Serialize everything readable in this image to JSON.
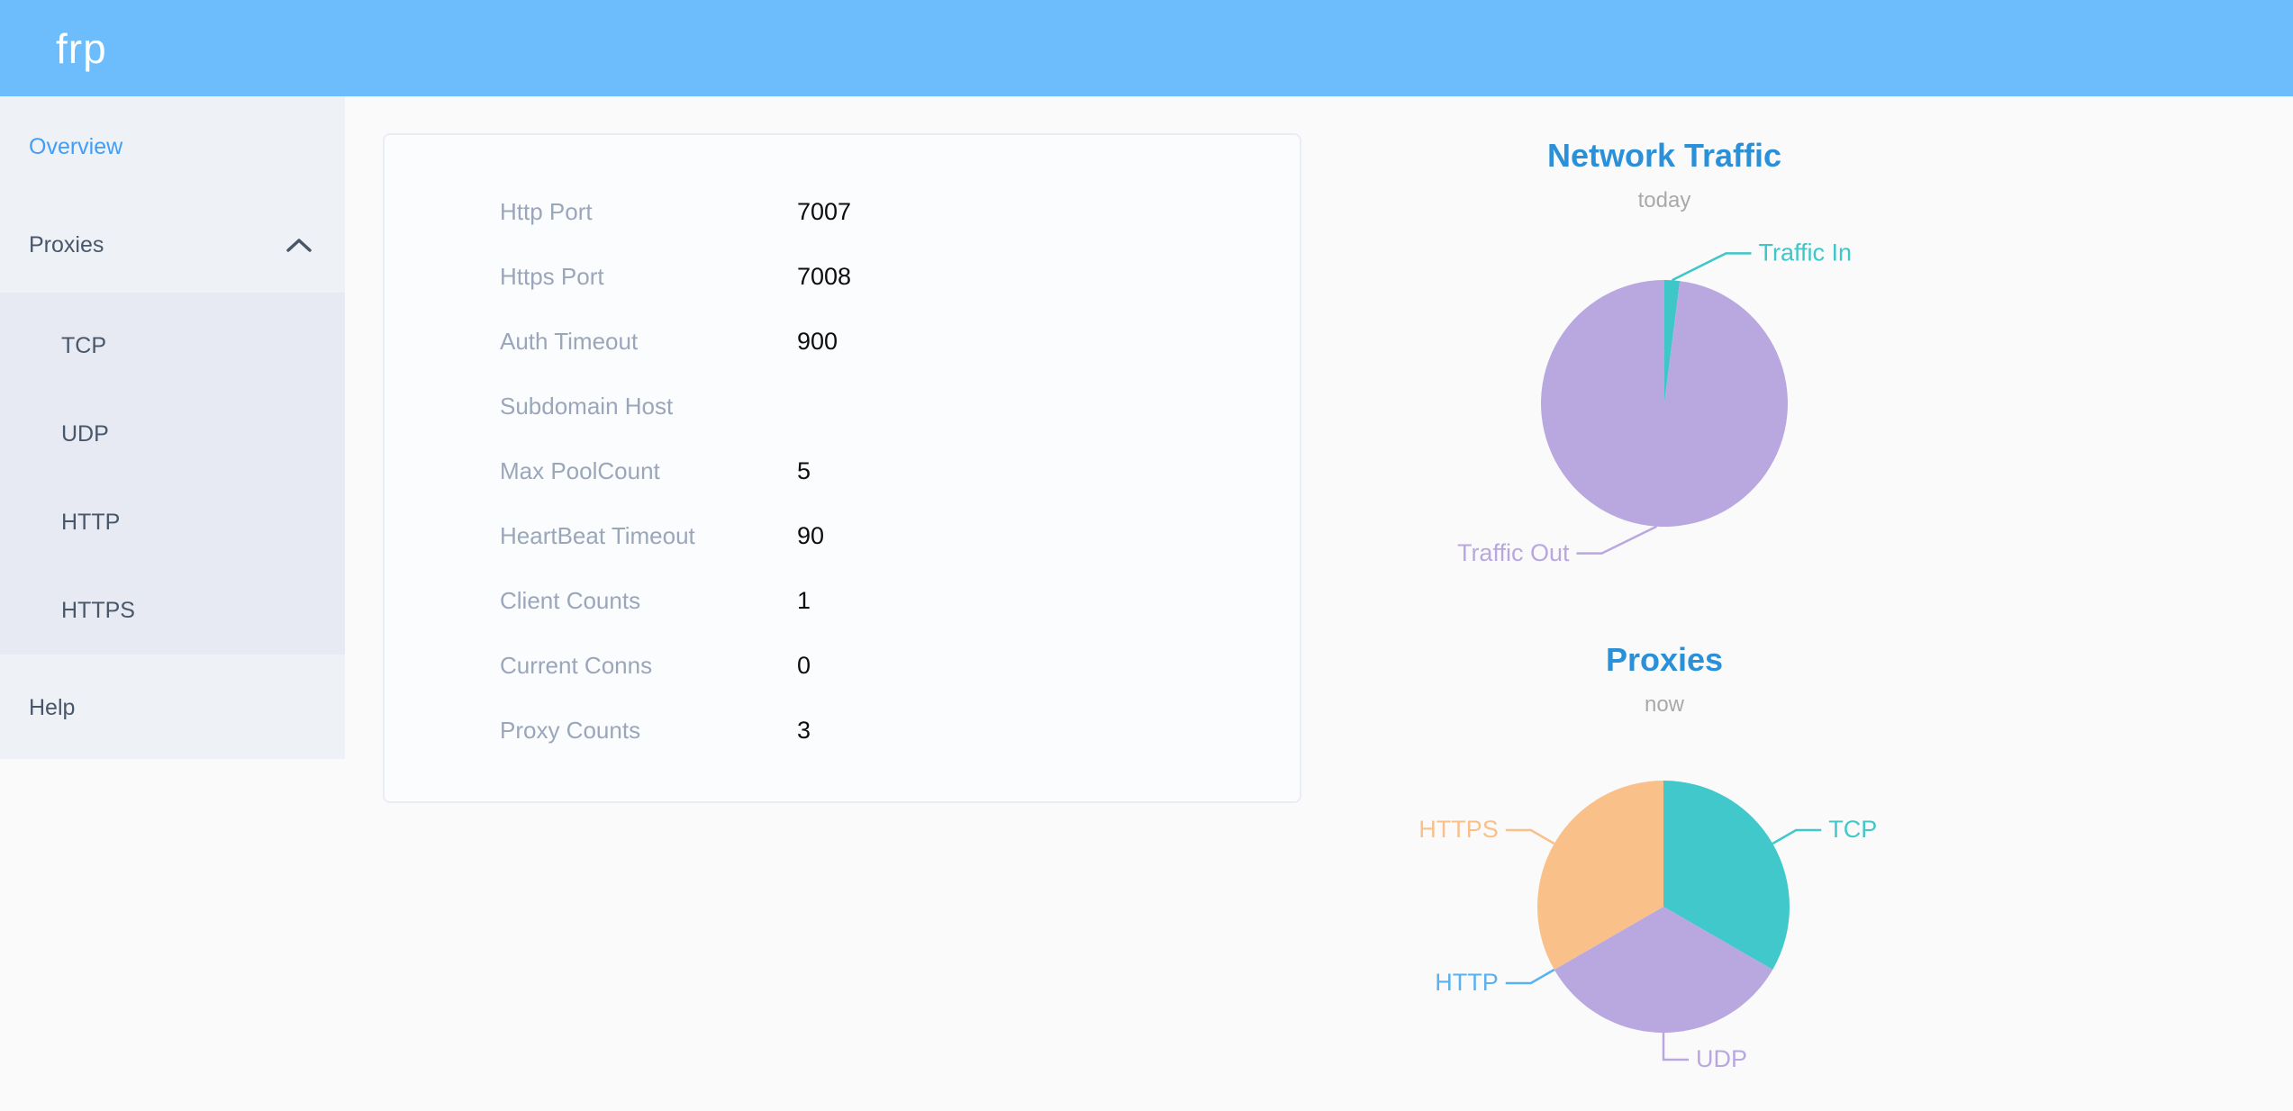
{
  "app": {
    "title": "frp"
  },
  "sidebar": {
    "items": [
      {
        "label": "Overview",
        "active": true
      },
      {
        "label": "Proxies",
        "expanded": true
      },
      {
        "label": "Help"
      }
    ],
    "proxies_submenu": [
      "TCP",
      "UDP",
      "HTTP",
      "HTTPS"
    ]
  },
  "overview": {
    "rows": [
      {
        "label": "Http Port",
        "value": "7007"
      },
      {
        "label": "Https Port",
        "value": "7008"
      },
      {
        "label": "Auth Timeout",
        "value": "900"
      },
      {
        "label": "Subdomain Host",
        "value": ""
      },
      {
        "label": "Max PoolCount",
        "value": "5"
      },
      {
        "label": "HeartBeat Timeout",
        "value": "90"
      },
      {
        "label": "Client Counts",
        "value": "1"
      },
      {
        "label": "Current Conns",
        "value": "0"
      },
      {
        "label": "Proxy Counts",
        "value": "3"
      }
    ]
  },
  "chart_data": [
    {
      "type": "pie",
      "title": "Network Traffic",
      "subtitle": "today",
      "legend_position": "outside-callout-labels",
      "values_are": "percent-estimated-from-pixels",
      "items": [
        {
          "label": "Traffic In",
          "value": 2,
          "color": "#3ec6c8",
          "label_dx": 58
        },
        {
          "label": "Traffic Out",
          "value": 98,
          "color": "#b9a7e0",
          "label_dx": -59
        }
      ]
    },
    {
      "type": "pie",
      "title": "Proxies",
      "subtitle": "now",
      "legend_position": "outside-callout-labels",
      "values_are": "proxy-counts",
      "items": [
        {
          "label": "TCP",
          "value": 1,
          "color": "#41c8ca"
        },
        {
          "label": "UDP",
          "value": 1,
          "color": "#b9a7e0"
        },
        {
          "label": "HTTP",
          "value": 0,
          "color": "#5ab1ef"
        },
        {
          "label": "HTTPS",
          "value": 1,
          "color": "#fac08a"
        }
      ]
    }
  ]
}
